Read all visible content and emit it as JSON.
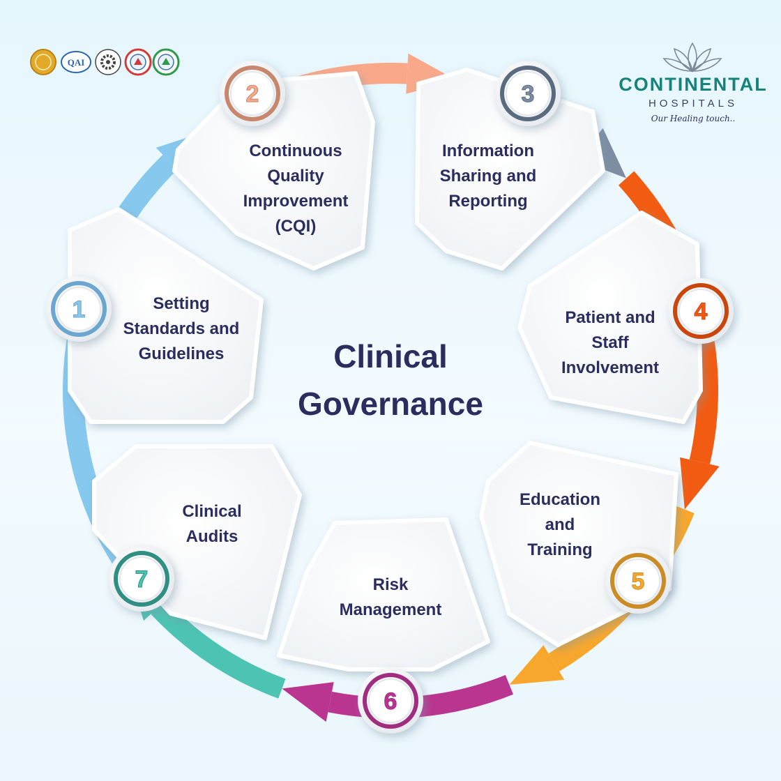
{
  "title_line1": "Clinical",
  "title_line2": "Governance",
  "steps": [
    {
      "number": "1",
      "color": "#86c8ee",
      "ring": "#6aa6cf",
      "lines": [
        "Setting",
        "Standards and",
        "Guidelines"
      ]
    },
    {
      "number": "2",
      "color": "#f9a98a",
      "ring": "#c6876c",
      "lines": [
        "Continuous",
        "Quality",
        "Improvement",
        "(CQI)"
      ]
    },
    {
      "number": "3",
      "color": "#7d8ea3",
      "ring": "#5a6b80",
      "lines": [
        "Information",
        "Sharing and",
        "Reporting"
      ]
    },
    {
      "number": "4",
      "color": "#f25c12",
      "ring": "#c9470c",
      "lines": [
        "Patient and",
        "Staff",
        "Involvement"
      ]
    },
    {
      "number": "5",
      "color": "#f7a72c",
      "ring": "#cb8c26",
      "lines": [
        "Education",
        "and",
        "Training"
      ]
    },
    {
      "number": "6",
      "color": "#b93590",
      "ring": "#a02d80",
      "lines": [
        "Risk",
        "Management"
      ]
    },
    {
      "number": "7",
      "color": "#4cc3b3",
      "ring": "#2f8f82",
      "lines": [
        "Clinical",
        "Audits"
      ]
    }
  ],
  "brand": {
    "name": "CONTINENTAL",
    "sub": "HOSPITALS",
    "tagline": "Our Healing touch..",
    "color": "#16837a"
  },
  "badges": [
    {
      "icon": "gold-seal-icon",
      "color": "#e3a928"
    },
    {
      "icon": "qai-badge-icon",
      "color": "#2a63b0",
      "text": "QAI"
    },
    {
      "icon": "iso-gear-icon",
      "color": "#444444"
    },
    {
      "icon": "nabh-red-badge-icon",
      "color": "#d23a3a"
    },
    {
      "icon": "nabh-green-badge-icon",
      "color": "#2c9a4a"
    }
  ]
}
